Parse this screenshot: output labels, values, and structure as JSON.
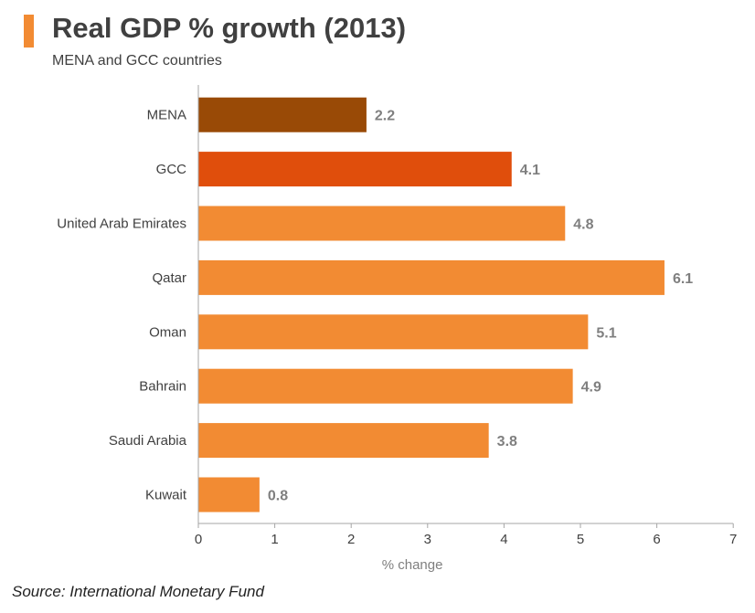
{
  "header": {
    "title": "Real GDP % growth (2013)",
    "subtitle": "MENA and GCC countries",
    "accent_color": "#f28b33"
  },
  "footer": {
    "source": "Source: International Monetary Fund"
  },
  "chart_data": {
    "type": "bar",
    "orientation": "horizontal",
    "title": "Real GDP % growth (2013)",
    "subtitle": "MENA and GCC countries",
    "xlabel": "% change",
    "ylabel": "",
    "xlim": [
      0,
      7
    ],
    "xticks": [
      "0",
      "1",
      "2",
      "3",
      "4",
      "5",
      "6",
      "7"
    ],
    "grid": false,
    "categories": [
      "MENA",
      "GCC",
      "United Arab Emirates",
      "Qatar",
      "Oman",
      "Bahrain",
      "Saudi Arabia",
      "Kuwait"
    ],
    "values": [
      2.2,
      4.1,
      4.8,
      6.1,
      5.1,
      4.9,
      3.8,
      0.8
    ],
    "value_labels": [
      "2.2",
      "4.1",
      "4.8",
      "6.1",
      "5.1",
      "4.9",
      "3.8",
      "0.8"
    ],
    "colors": [
      "#994a06",
      "#e04e0c",
      "#f28b33",
      "#f28b33",
      "#f28b33",
      "#f28b33",
      "#f28b33",
      "#f28b33"
    ]
  }
}
